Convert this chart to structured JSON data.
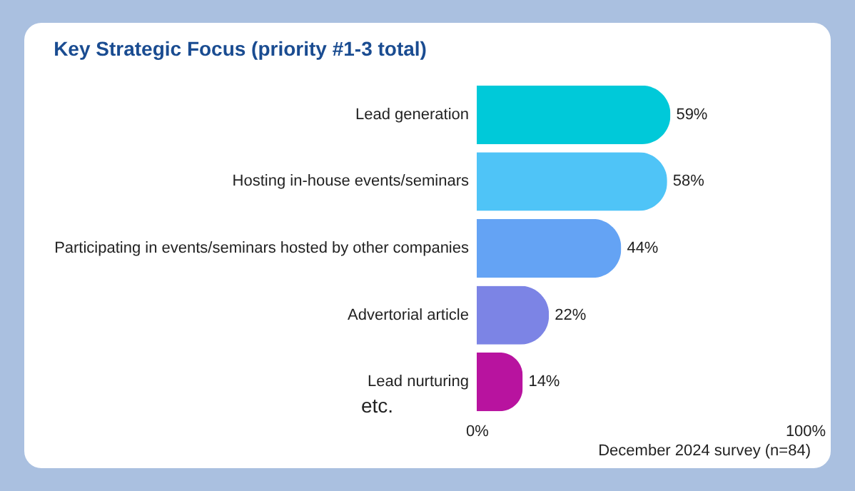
{
  "chart_data": {
    "type": "bar",
    "orientation": "horizontal",
    "title": "Key Strategic Focus (priority #1-3 total)",
    "categories": [
      "Lead generation",
      "Hosting in-house events/seminars",
      "Participating in events/seminars hosted by other companies",
      "Advertorial article",
      "Lead nurturing"
    ],
    "values": [
      59,
      58,
      44,
      22,
      14
    ],
    "colors": [
      "#00c9d9",
      "#4fc4f7",
      "#64a3f4",
      "#7c84e5",
      "#b8139f"
    ],
    "value_labels": [
      "59%",
      "58%",
      "44%",
      "22%",
      "14%"
    ],
    "xlim": [
      0,
      100
    ],
    "xticks": [
      {
        "value": 0,
        "label": "0%"
      },
      {
        "value": 100,
        "label": "100%"
      }
    ],
    "grid": false,
    "annotations": [
      "etc.",
      "December 2024 survey (n=84)"
    ]
  }
}
